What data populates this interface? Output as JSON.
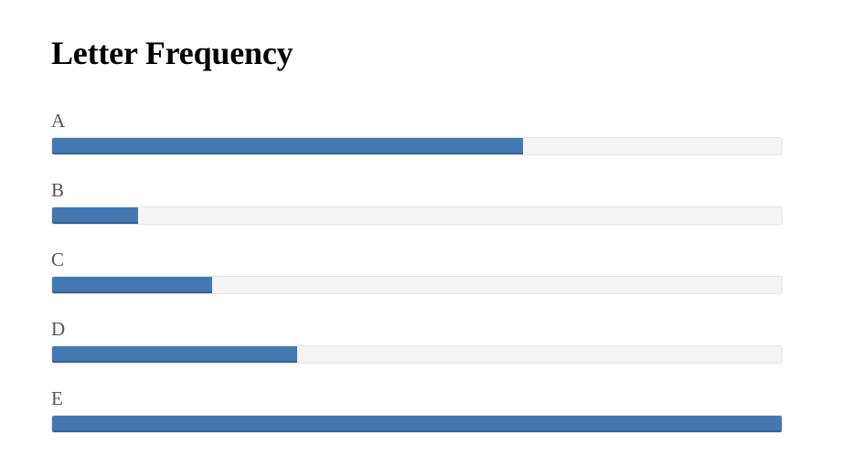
{
  "page": {
    "title": "Letter Frequency"
  },
  "colors": {
    "bar": "#4478b2",
    "track": "#f4f4f4"
  },
  "chart_data": {
    "type": "bar",
    "orientation": "horizontal",
    "title": "Letter Frequency",
    "xlabel": "",
    "ylabel": "",
    "categories": [
      "A",
      "B",
      "C",
      "D",
      "E"
    ],
    "values": [
      0.0817,
      0.0149,
      0.0278,
      0.0425,
      0.127
    ],
    "xlim": [
      0,
      0.127
    ],
    "grid": false
  }
}
